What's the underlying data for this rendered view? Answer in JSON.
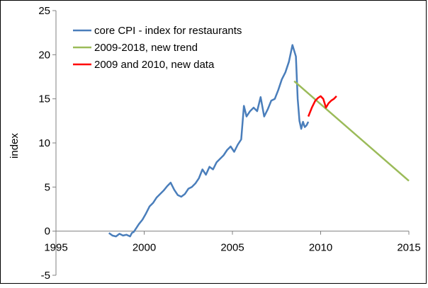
{
  "chart_data": {
    "type": "line",
    "title": "",
    "xlabel": "",
    "ylabel": "index",
    "xlim": [
      1995,
      2015
    ],
    "ylim": [
      -5,
      25
    ],
    "xticks": [
      1995,
      2000,
      2005,
      2010,
      2015
    ],
    "yticks": [
      -5,
      0,
      5,
      10,
      15,
      20,
      25
    ],
    "grid": false,
    "legend_position": "top-left",
    "series": [
      {
        "name": "core CPI - index for restaurants",
        "color": "#4a7ebb",
        "points": [
          [
            1998.0,
            -0.2
          ],
          [
            1998.2,
            -0.5
          ],
          [
            1998.4,
            -0.6
          ],
          [
            1998.6,
            -0.3
          ],
          [
            1998.8,
            -0.5
          ],
          [
            1999.0,
            -0.4
          ],
          [
            1999.2,
            -0.6
          ],
          [
            1999.3,
            -0.2
          ],
          [
            1999.4,
            -0.1
          ],
          [
            1999.5,
            0.2
          ],
          [
            1999.7,
            0.8
          ],
          [
            1999.9,
            1.3
          ],
          [
            2000.1,
            2.0
          ],
          [
            2000.3,
            2.8
          ],
          [
            2000.5,
            3.2
          ],
          [
            2000.7,
            3.8
          ],
          [
            2000.9,
            4.2
          ],
          [
            2001.1,
            4.6
          ],
          [
            2001.3,
            5.1
          ],
          [
            2001.5,
            5.5
          ],
          [
            2001.7,
            4.7
          ],
          [
            2001.9,
            4.1
          ],
          [
            2002.1,
            3.9
          ],
          [
            2002.3,
            4.2
          ],
          [
            2002.5,
            4.8
          ],
          [
            2002.7,
            5.0
          ],
          [
            2002.9,
            5.4
          ],
          [
            2003.1,
            6.0
          ],
          [
            2003.3,
            7.0
          ],
          [
            2003.5,
            6.4
          ],
          [
            2003.7,
            7.3
          ],
          [
            2003.9,
            7.0
          ],
          [
            2004.1,
            7.8
          ],
          [
            2004.3,
            8.2
          ],
          [
            2004.5,
            8.6
          ],
          [
            2004.7,
            9.2
          ],
          [
            2004.9,
            9.6
          ],
          [
            2005.1,
            9.0
          ],
          [
            2005.3,
            9.8
          ],
          [
            2005.5,
            10.4
          ],
          [
            2005.65,
            14.2
          ],
          [
            2005.8,
            13.0
          ],
          [
            2006.0,
            13.6
          ],
          [
            2006.2,
            14.0
          ],
          [
            2006.4,
            13.6
          ],
          [
            2006.6,
            15.2
          ],
          [
            2006.8,
            13.0
          ],
          [
            2007.0,
            13.8
          ],
          [
            2007.2,
            14.8
          ],
          [
            2007.4,
            15.0
          ],
          [
            2007.6,
            16.0
          ],
          [
            2007.8,
            17.2
          ],
          [
            2008.0,
            18.0
          ],
          [
            2008.2,
            19.2
          ],
          [
            2008.4,
            21.1
          ],
          [
            2008.6,
            19.8
          ],
          [
            2008.7,
            15.0
          ],
          [
            2008.8,
            12.5
          ],
          [
            2008.9,
            11.6
          ],
          [
            2009.0,
            12.4
          ],
          [
            2009.1,
            11.8
          ],
          [
            2009.2,
            12.0
          ],
          [
            2009.3,
            12.4
          ]
        ]
      },
      {
        "name": "2009-2018, new trend",
        "color": "#9bbb59",
        "points": [
          [
            2008.5,
            17.0
          ],
          [
            2015.0,
            5.7
          ]
        ]
      },
      {
        "name": "2009 and 2010, new data",
        "color": "#ff0000",
        "points": [
          [
            2009.3,
            13.0
          ],
          [
            2009.5,
            14.0
          ],
          [
            2009.7,
            14.8
          ],
          [
            2009.85,
            15.1
          ],
          [
            2010.0,
            15.3
          ],
          [
            2010.15,
            15.0
          ],
          [
            2010.3,
            14.0
          ],
          [
            2010.45,
            14.5
          ],
          [
            2010.6,
            14.8
          ],
          [
            2010.75,
            15.0
          ],
          [
            2010.9,
            15.3
          ]
        ]
      }
    ]
  }
}
